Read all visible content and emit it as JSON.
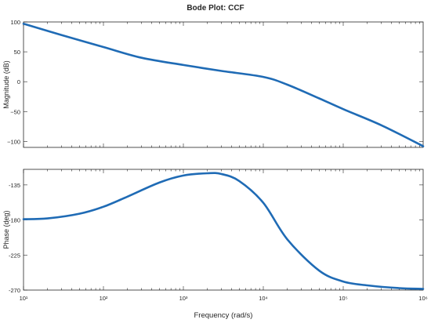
{
  "chart_data": [
    {
      "type": "line",
      "title": "Bode Plot: CCF",
      "ylabel": "Magnitude (dB)",
      "xlabel": "",
      "x_scale": "log",
      "xlim": [
        10,
        1000000
      ],
      "ylim": [
        -110,
        100
      ],
      "yticks": [
        100,
        50,
        0,
        -50,
        -100
      ],
      "ytick_labels": [
        "100",
        "50",
        "0",
        "−50",
        "−100"
      ],
      "grid": false,
      "series": [
        {
          "color": "#1f6bb5",
          "x": [
            10,
            30,
            100,
            300,
            1000,
            3000,
            10000,
            20000,
            50000,
            100000,
            300000,
            1000000
          ],
          "y": [
            97,
            78,
            58,
            40,
            28,
            18,
            8,
            -5,
            -28,
            -46,
            -73,
            -108
          ]
        }
      ]
    },
    {
      "type": "line",
      "title": "",
      "ylabel": "Phase (deg)",
      "xlabel": "Frequency (rad/s)",
      "x_scale": "log",
      "xlim": [
        10,
        1000000
      ],
      "ylim": [
        -270,
        -115
      ],
      "yticks": [
        -135,
        -180,
        -225,
        -270
      ],
      "ytick_labels": [
        "-135",
        "-180",
        "-225",
        "-270"
      ],
      "xticks": [
        10,
        100,
        1000,
        10000,
        100000,
        1000000
      ],
      "xtick_labels": [
        "10^1",
        "10^2",
        "10^3",
        "10^4",
        "10^5",
        "10^6"
      ],
      "grid": false,
      "series": [
        {
          "color": "#1f6bb5",
          "x": [
            10,
            20,
            50,
            100,
            200,
            500,
            1000,
            2000,
            3000,
            5000,
            10000,
            20000,
            50000,
            100000,
            200000,
            500000,
            1000000
          ],
          "y": [
            -179,
            -178,
            -172,
            -163,
            -150,
            -132,
            -123,
            -120,
            -121,
            -130,
            -158,
            -205,
            -245,
            -259,
            -264,
            -267.5,
            -268.5
          ]
        }
      ]
    }
  ]
}
